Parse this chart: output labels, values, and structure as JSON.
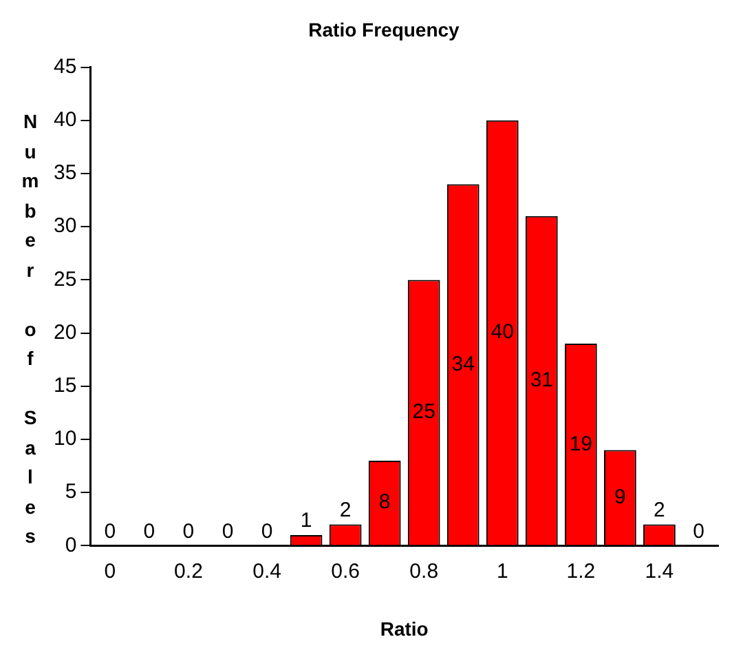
{
  "chart_data": {
    "type": "bar",
    "title": "Ratio Frequency",
    "xlabel": "Ratio",
    "ylabel": "Number of Sales",
    "categories": [
      "0",
      null,
      "0.2",
      null,
      "0.4",
      null,
      "0.6",
      null,
      "0.8",
      null,
      "1",
      null,
      "1.2",
      null,
      "1.4",
      null
    ],
    "values": [
      0,
      0,
      0,
      0,
      0,
      1,
      2,
      8,
      25,
      34,
      40,
      31,
      19,
      9,
      2,
      0
    ],
    "color": "#ff0000",
    "ylim": [
      0,
      45
    ],
    "yticks": [
      0,
      5,
      10,
      15,
      20,
      25,
      30,
      35,
      40,
      45
    ],
    "data_labels": true,
    "grid": false,
    "legend": false
  }
}
